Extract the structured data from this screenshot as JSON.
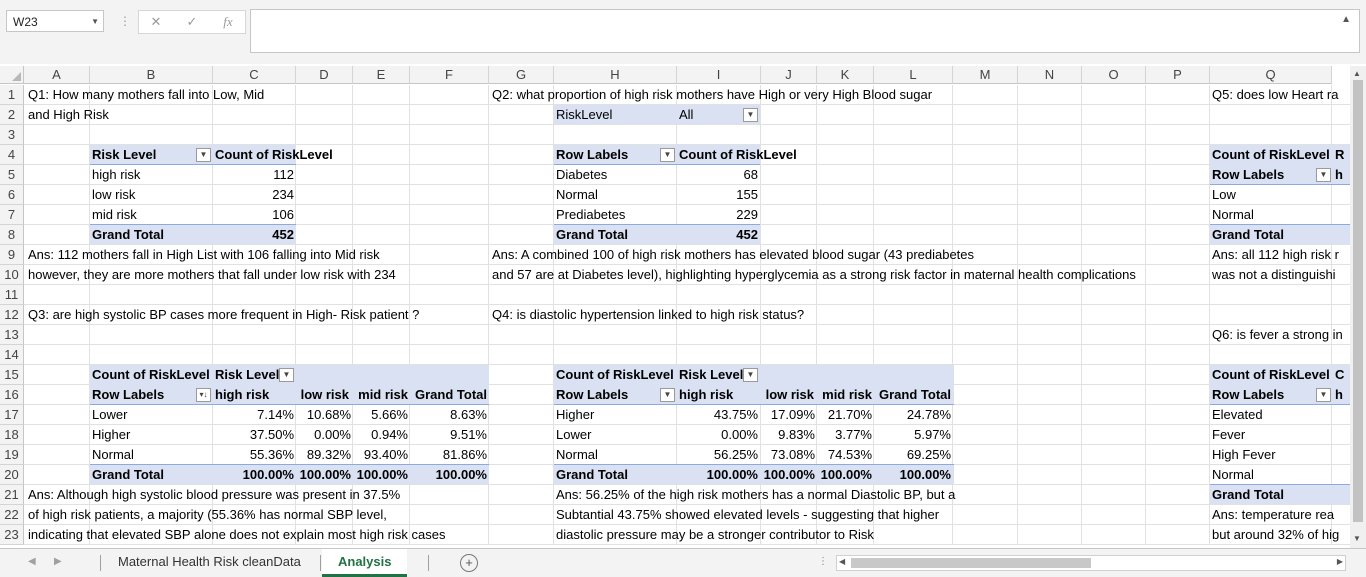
{
  "name_box": "W23",
  "formula_bar": {
    "cancel": "✕",
    "enter": "✓",
    "fx": "fx",
    "value": ""
  },
  "columns": [
    "A",
    "B",
    "C",
    "D",
    "E",
    "F",
    "G",
    "H",
    "I",
    "J",
    "K",
    "L",
    "M",
    "N",
    "O",
    "P",
    "Q"
  ],
  "rows": [
    "1",
    "2",
    "3",
    "4",
    "5",
    "6",
    "7",
    "8",
    "9",
    "10",
    "11",
    "12",
    "13",
    "14",
    "15",
    "16",
    "17",
    "18",
    "19",
    "20",
    "21",
    "22",
    "23"
  ],
  "q1": {
    "title_line1": "Q1: How many mothers fall into Low, Mid",
    "title_line2": "and High Risk",
    "header": [
      "Risk Level",
      "Count of RiskLevel"
    ],
    "rows": [
      [
        "high risk",
        "112"
      ],
      [
        "low risk",
        "234"
      ],
      [
        "mid risk",
        "106"
      ]
    ],
    "total": [
      "Grand Total",
      "452"
    ],
    "ans_line1": "Ans:  112 mothers fall in High List with 106 falling into Mid risk",
    "ans_line2": "however, they are more mothers that fall under low risk with 234"
  },
  "q2": {
    "title": "Q2:  what proportion of high risk mothers have High or very High Blood sugar",
    "filter_label": "RiskLevel",
    "filter_value": "All",
    "header": [
      "Row Labels",
      "Count of RiskLevel"
    ],
    "rows": [
      [
        "Diabetes",
        "68"
      ],
      [
        "Normal",
        "155"
      ],
      [
        "Prediabetes",
        "229"
      ]
    ],
    "total": [
      "Grand Total",
      "452"
    ],
    "ans_line1": "Ans: A combined 100  of high risk mothers has elevated blood sugar (43 prediabetes",
    "ans_line2": "and 57 are at Diabetes level), highlighting hyperglycemia as a strong risk factor in maternal health complications"
  },
  "q3": {
    "title": "Q3: are high systolic BP cases more frequent in High- Risk patient ?",
    "count_label": "Count of RiskLevel",
    "col_field": "Risk Level",
    "header": [
      "Row Labels",
      "high risk",
      "low risk",
      "mid risk",
      "Grand Total"
    ],
    "rows": [
      [
        "Lower",
        "7.14%",
        "10.68%",
        "5.66%",
        "8.63%"
      ],
      [
        "Higher",
        "37.50%",
        "0.00%",
        "0.94%",
        "9.51%"
      ],
      [
        "Normal",
        "55.36%",
        "89.32%",
        "93.40%",
        "81.86%"
      ]
    ],
    "total": [
      "Grand Total",
      "100.00%",
      "100.00%",
      "100.00%",
      "100.00%"
    ],
    "ans_line1": "Ans: Although high systolic blood pressure was present in 37.5%",
    "ans_line2": "of high risk patients, a majority (55.36% has normal SBP level,",
    "ans_line3": "indicating that elevated SBP alone does not explain most high risk cases"
  },
  "q4": {
    "title": "Q4: is diastolic hypertension linked to high risk status?",
    "count_label": "Count of RiskLevel",
    "col_field": "Risk Level",
    "header": [
      "Row Labels",
      "high risk",
      "low risk",
      "mid risk",
      "Grand Total"
    ],
    "rows": [
      [
        "Higher",
        "43.75%",
        "17.09%",
        "21.70%",
        "24.78%"
      ],
      [
        "Lower",
        "0.00%",
        "9.83%",
        "3.77%",
        "5.97%"
      ],
      [
        "Normal",
        "56.25%",
        "73.08%",
        "74.53%",
        "69.25%"
      ]
    ],
    "total": [
      "Grand Total",
      "100.00%",
      "100.00%",
      "100.00%",
      "100.00%"
    ],
    "ans_line1": "Ans: 56.25% of the high risk mothers has a normal Diastolic BP, but a",
    "ans_line2": "Subtantial 43.75% showed elevated levels - suggesting that higher",
    "ans_line3": "diastolic pressure may be a stronger contributor to Risk"
  },
  "q5": {
    "title": "Q5: does low Heart ra",
    "count_label": "Count of RiskLevel",
    "col_stub": "R",
    "row_labels": "Row Labels",
    "col_stub2": "h",
    "rows": [
      "Low",
      "Normal"
    ],
    "total": "Grand Total",
    "ans_line1": "Ans: all 112 high risk r",
    "ans_line2": "was not a distinguishi"
  },
  "q6": {
    "title": "Q6: is fever a strong in",
    "count_label": "Count of RiskLevel",
    "col_stub": "C",
    "row_labels": "Row Labels",
    "col_stub2": "h",
    "rows": [
      "Elevated",
      "Fever",
      "High Fever",
      "Normal"
    ],
    "total": "Grand Total",
    "ans_line1": "Ans: temperature rea",
    "ans_line2": "but around 32% of hig"
  },
  "sheets": {
    "tab1": "Maternal Health Risk cleanData",
    "tab2": "Analysis",
    "active": "Analysis"
  },
  "colors": {
    "pivot_header": "#d9e1f2",
    "accent": "#217346",
    "pivot_line": "#8ea9db"
  }
}
